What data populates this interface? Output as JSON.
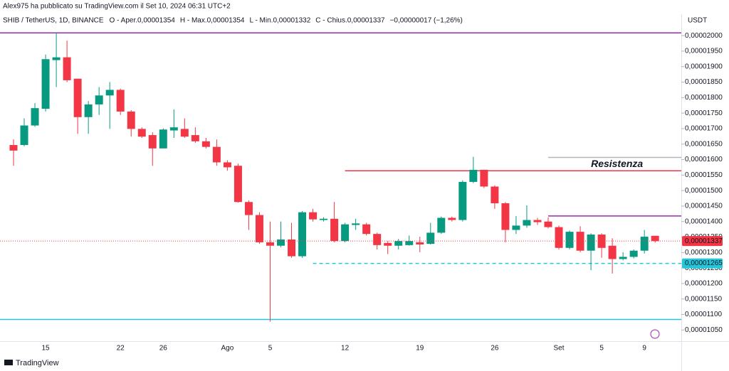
{
  "header": {
    "attribution": "Alex975 ha pubblicato su TradingView.com il Set 10, 2024 06:31 UTC+2",
    "symbol": "SHIB / TetherUS, 1D, BINANCE",
    "ohlc": [
      {
        "label": "O - Aper.",
        "value": "0,00001354"
      },
      {
        "label": "H - Max.",
        "value": "0,00001354"
      },
      {
        "label": "L - Min.",
        "value": "0,00001332"
      },
      {
        "label": "C - Chius.",
        "value": "0,00001337"
      }
    ],
    "change": "−0,00000017 (−1,26%)"
  },
  "footer": {
    "brand": "TradingView"
  },
  "chart_data": {
    "type": "candlestick",
    "currency": "USDT",
    "categories": [
      null,
      null,
      null,
      "15",
      null,
      null,
      null,
      null,
      null,
      null,
      "22",
      null,
      null,
      null,
      "26",
      null,
      null,
      null,
      null,
      null,
      "Ago",
      null,
      null,
      null,
      "5",
      null,
      null,
      null,
      null,
      null,
      null,
      "12",
      null,
      null,
      null,
      null,
      null,
      null,
      "19",
      null,
      null,
      null,
      null,
      null,
      null,
      "26",
      null,
      null,
      null,
      null,
      null,
      "Set",
      null,
      null,
      null,
      "5",
      null,
      null,
      null,
      "9",
      null
    ],
    "up_color": "#089981",
    "down_color": "#f23645",
    "open": [
      1.647e-05,
      1.647e-05,
      1.71e-05,
      1.764e-05,
      1.921e-05,
      1.93e-05,
      1.861e-05,
      1.737e-05,
      1.778e-05,
      1.807e-05,
      1.825e-05,
      1.755e-05,
      1.699e-05,
      1.679e-05,
      1.636e-05,
      1.694e-05,
      1.699e-05,
      1.679e-05,
      1.659e-05,
      1.641e-05,
      1.591e-05,
      1.58e-05,
      1.463e-05,
      1.421e-05,
      1.333e-05,
      1.322e-05,
      1.342e-05,
      1.288e-05,
      1.43e-05,
      1.405e-05,
      1.409e-05,
      1.337e-05,
      1.389e-05,
      1.391e-05,
      1.36e-05,
      1.331e-05,
      1.322e-05,
      1.324e-05,
      1.333e-05,
      1.328e-05,
      1.364e-05,
      1.412e-05,
      1.405e-05,
      1.528e-05,
      1.567e-05,
      1.513e-05,
      1.459e-05,
      1.373e-05,
      1.387e-05,
      1.405e-05,
      1.4e-05,
      1.382e-05,
      1.315e-05,
      1.367e-05,
      1.306e-05,
      1.358e-05,
      1.322e-05,
      1.279e-05,
      1.286e-05,
      1.306e-05,
      1.354e-05
    ],
    "high": [
      1.665e-05,
      1.733e-05,
      1.782e-05,
      1.939e-05,
      2.011e-05,
      1.984e-05,
      1.861e-05,
      1.789e-05,
      1.834e-05,
      1.85e-05,
      1.829e-05,
      1.76e-05,
      1.704e-05,
      1.688e-05,
      1.701e-05,
      1.762e-05,
      1.733e-05,
      1.704e-05,
      1.67e-05,
      1.665e-05,
      1.598e-05,
      1.587e-05,
      1.468e-05,
      1.43e-05,
      1.4e-05,
      1.4e-05,
      1.396e-05,
      1.434e-05,
      1.441e-05,
      1.414e-05,
      1.463e-05,
      1.396e-05,
      1.409e-05,
      1.396e-05,
      1.364e-05,
      1.337e-05,
      1.344e-05,
      1.355e-05,
      1.351e-05,
      1.396e-05,
      1.416e-05,
      1.416e-05,
      1.533e-05,
      1.609e-05,
      1.567e-05,
      1.517e-05,
      1.463e-05,
      1.418e-05,
      1.452e-05,
      1.412e-05,
      1.414e-05,
      1.387e-05,
      1.371e-05,
      1.385e-05,
      1.362e-05,
      1.362e-05,
      1.346e-05,
      1.301e-05,
      1.31e-05,
      1.373e-05,
      1.354e-05
    ],
    "low": [
      1.58e-05,
      1.643e-05,
      1.706e-05,
      1.755e-05,
      1.834e-05,
      1.85e-05,
      1.683e-05,
      1.683e-05,
      1.744e-05,
      1.699e-05,
      1.744e-05,
      1.674e-05,
      1.67e-05,
      1.58e-05,
      1.636e-05,
      1.67e-05,
      1.67e-05,
      1.654e-05,
      1.636e-05,
      1.58e-05,
      1.564e-05,
      1.461e-05,
      1.373e-05,
      1.328e-05,
      1.077e-05,
      1.317e-05,
      1.283e-05,
      1.283e-05,
      1.4e-05,
      1.4e-05,
      1.333e-05,
      1.333e-05,
      1.373e-05,
      1.355e-05,
      1.31e-05,
      1.295e-05,
      1.31e-05,
      1.322e-05,
      1.301e-05,
      1.326e-05,
      1.36e-05,
      1.4e-05,
      1.4e-05,
      1.524e-05,
      1.508e-05,
      1.441e-05,
      1.333e-05,
      1.36e-05,
      1.38e-05,
      1.389e-05,
      1.378e-05,
      1.31e-05,
      1.31e-05,
      1.301e-05,
      1.243e-05,
      1.283e-05,
      1.232e-05,
      1.275e-05,
      1.281e-05,
      1.297e-05,
      1.332e-05
    ],
    "close": [
      1.629e-05,
      1.71e-05,
      1.766e-05,
      1.924e-05,
      1.93e-05,
      1.856e-05,
      1.737e-05,
      1.778e-05,
      1.807e-05,
      1.825e-05,
      1.755e-05,
      1.699e-05,
      1.674e-05,
      1.636e-05,
      1.697e-05,
      1.704e-05,
      1.674e-05,
      1.659e-05,
      1.641e-05,
      1.591e-05,
      1.575e-05,
      1.463e-05,
      1.421e-05,
      1.333e-05,
      1.322e-05,
      1.342e-05,
      1.288e-05,
      1.43e-05,
      1.407e-05,
      1.409e-05,
      1.337e-05,
      1.391e-05,
      1.394e-05,
      1.36e-05,
      1.324e-05,
      1.322e-05,
      1.337e-05,
      1.337e-05,
      1.326e-05,
      1.364e-05,
      1.412e-05,
      1.405e-05,
      1.528e-05,
      1.567e-05,
      1.513e-05,
      1.459e-05,
      1.373e-05,
      1.387e-05,
      1.405e-05,
      1.398e-05,
      1.382e-05,
      1.315e-05,
      1.367e-05,
      1.306e-05,
      1.358e-05,
      1.315e-05,
      1.279e-05,
      1.286e-05,
      1.306e-05,
      1.351e-05,
      1.337e-05
    ],
    "ylim": [
      1.014e-05,
      2.115e-05
    ],
    "yticks": [
      {
        "value": 1.05e-05,
        "label": "0,00001050"
      },
      {
        "value": 1.1e-05,
        "label": "0,00001100"
      },
      {
        "value": 1.15e-05,
        "label": "0,00001150"
      },
      {
        "value": 1.2e-05,
        "label": "0,00001200"
      },
      {
        "value": 1.25e-05,
        "label": "0,00001250"
      },
      {
        "value": 1.3e-05,
        "label": "0,00001300"
      },
      {
        "value": 1.35e-05,
        "label": "0,00001350"
      },
      {
        "value": 1.4e-05,
        "label": "0,00001400"
      },
      {
        "value": 1.45e-05,
        "label": "0,00001450"
      },
      {
        "value": 1.5e-05,
        "label": "0,00001500"
      },
      {
        "value": 1.55e-05,
        "label": "0,00001550"
      },
      {
        "value": 1.6e-05,
        "label": "0,00001600"
      },
      {
        "value": 1.65e-05,
        "label": "0,00001650"
      },
      {
        "value": 1.7e-05,
        "label": "0,00001700"
      },
      {
        "value": 1.75e-05,
        "label": "0,00001750"
      },
      {
        "value": 1.8e-05,
        "label": "0,00001800"
      },
      {
        "value": 1.85e-05,
        "label": "0,00001850"
      },
      {
        "value": 1.9e-05,
        "label": "0,00001900"
      },
      {
        "value": 1.95e-05,
        "label": "0,00001950"
      },
      {
        "value": 2e-05,
        "label": "0,00002000"
      }
    ],
    "grid": false,
    "levels": [
      {
        "value": 2.009e-05,
        "color": "#9c27b0",
        "start": 0,
        "dashed": false
      },
      {
        "value": 1.564e-05,
        "color": "#f23645",
        "start": 31,
        "dashed": false
      },
      {
        "value": 1.607e-05,
        "color": "#b2b5be",
        "start": 50,
        "dashed": false
      },
      {
        "value": 1.418e-05,
        "color": "#9c27b0",
        "start": 50,
        "dashed": false
      },
      {
        "value": 1.265e-05,
        "color": "#26c6da",
        "start": 28,
        "dashed": true
      },
      {
        "value": 1.084e-05,
        "color": "#26c6da",
        "start": 0,
        "dashed": false
      }
    ],
    "annotation": {
      "text": "Resistenza",
      "value": 1.584e-05,
      "start": 54,
      "color": "#f23645"
    },
    "price_labels": [
      {
        "value": 1.337e-05,
        "label": "0,00001337",
        "color": "#f23645"
      },
      {
        "value": 1.265e-05,
        "label": "0,00001265",
        "color": "#26c6da"
      }
    ]
  }
}
